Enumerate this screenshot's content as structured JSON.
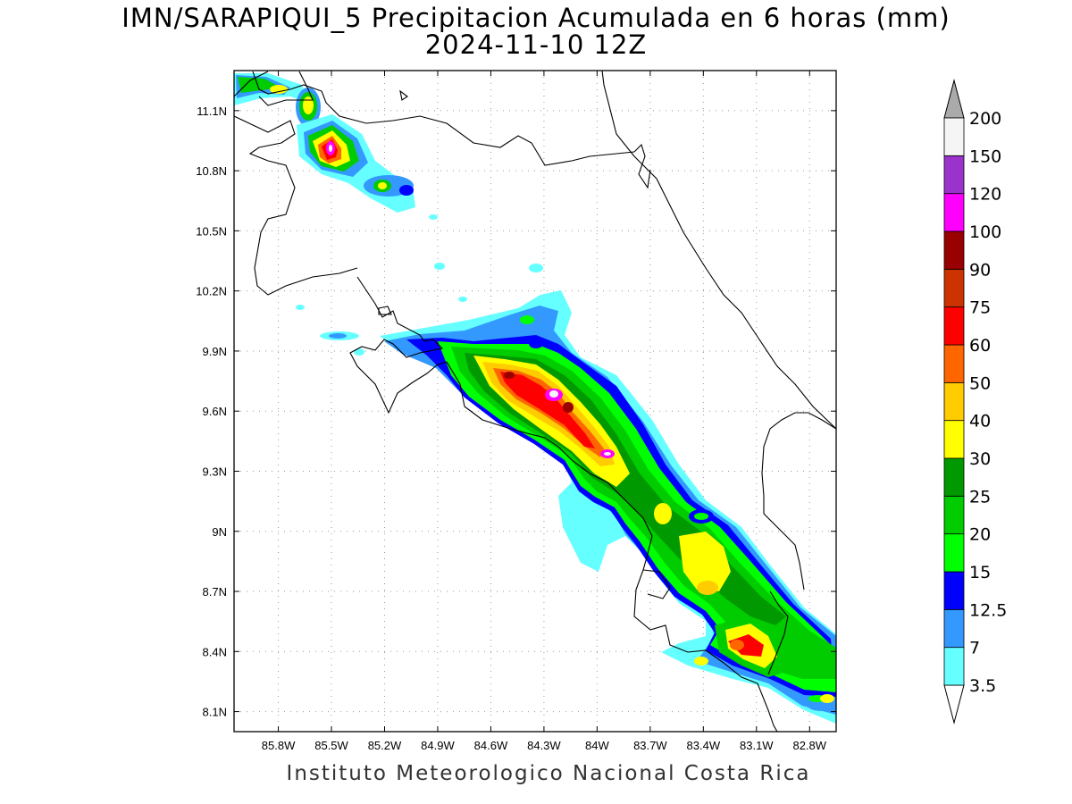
{
  "title": {
    "line1": "IMN/SARAPIQUI_5 Precipitacion Acumulada en 6 horas (mm)",
    "line2": "2024-11-10 12Z"
  },
  "footer": "Instituto Meteorologico Nacional Costa Rica",
  "map": {
    "lon_range": [
      -86.05,
      -82.65
    ],
    "lat_range": [
      8.0,
      11.3
    ],
    "lon_ticks": [
      "85.8W",
      "85.5W",
      "85.2W",
      "84.9W",
      "84.6W",
      "84.3W",
      "84W",
      "83.7W",
      "83.4W",
      "83.1W",
      "82.8W"
    ],
    "lat_ticks": [
      "8.1N",
      "8.4N",
      "8.7N",
      "9N",
      "9.3N",
      "9.6N",
      "9.9N",
      "10.2N",
      "10.5N",
      "10.8N",
      "11.1N"
    ],
    "grid": "dotted"
  },
  "colorbar": {
    "labels": [
      "3.5",
      "7",
      "12.5",
      "15",
      "20",
      "25",
      "30",
      "40",
      "50",
      "60",
      "75",
      "90",
      "100",
      "120",
      "150",
      "200"
    ],
    "colors": [
      "#66ffff",
      "#3399ff",
      "#0000ff",
      "#00ff00",
      "#00cc00",
      "#009900",
      "#ffff00",
      "#ffcc00",
      "#ff6600",
      "#ff0000",
      "#cc3300",
      "#990000",
      "#ff00ff",
      "#9933cc",
      "#f5f5f5"
    ],
    "under_color": "#ffffff",
    "over_color": "#aaaaaa"
  }
}
